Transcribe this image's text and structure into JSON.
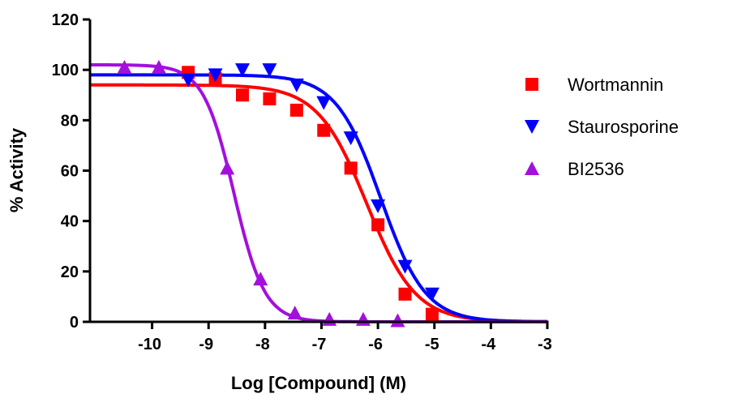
{
  "chart_data": {
    "type": "scatter",
    "title": "",
    "xlabel": "Log [Compound] (M)",
    "ylabel": "% Activity",
    "xlim": [
      -11.1,
      -3
    ],
    "ylim": [
      0,
      120
    ],
    "xticks": [
      -10,
      -9,
      -8,
      -7,
      -6,
      -5,
      -4,
      -3
    ],
    "yticks": [
      0,
      20,
      40,
      60,
      80,
      100,
      120
    ],
    "grid": false,
    "legend_position": "right",
    "series": [
      {
        "name": "Wortmannin",
        "color": "#ff0000",
        "marker": "square",
        "x": [
          -9.36,
          -8.88,
          -8.4,
          -7.92,
          -7.44,
          -6.96,
          -6.48,
          -6.0,
          -5.52,
          -5.04
        ],
        "y": [
          99,
          96.5,
          90,
          88.5,
          84,
          76,
          61,
          38.5,
          11,
          3
        ],
        "fit": {
          "top": 94,
          "bottom": 0,
          "logIC50": -6.2,
          "hill": 1.0
        }
      },
      {
        "name": "Staurosporine",
        "color": "#0000ff",
        "marker": "triangle-down",
        "x": [
          -9.36,
          -8.88,
          -8.4,
          -7.92,
          -7.44,
          -6.96,
          -6.48,
          -6.0,
          -5.52,
          -5.04
        ],
        "y": [
          96,
          98,
          100,
          100,
          94,
          87,
          73,
          46,
          22,
          11
        ],
        "fit": {
          "top": 98,
          "bottom": 0,
          "logIC50": -5.95,
          "hill": 1.1
        }
      },
      {
        "name": "BI2536",
        "color": "#a30fdd",
        "marker": "triangle-up",
        "x": [
          -10.49,
          -9.88,
          -8.67,
          -8.08,
          -7.47,
          -6.86,
          -6.26,
          -5.65
        ],
        "y": [
          101,
          101,
          61,
          17,
          3.5,
          1,
          1,
          0.5
        ],
        "fit": {
          "top": 102,
          "bottom": 0,
          "logIC50": -8.55,
          "hill": 1.6
        }
      }
    ]
  }
}
